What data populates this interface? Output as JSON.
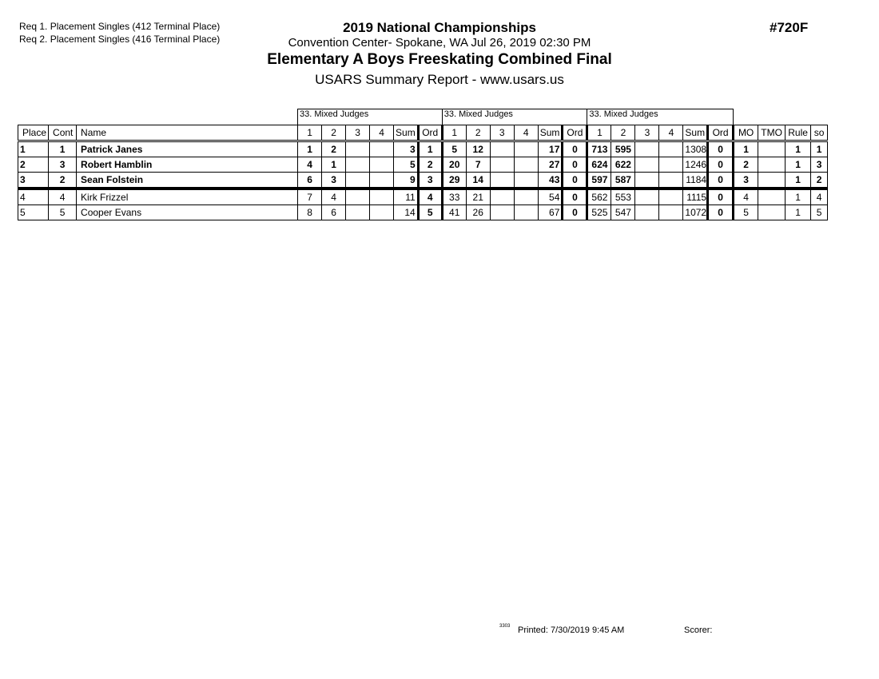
{
  "header": {
    "requirements": [
      "Req  1.  Placement Singles (412 Terminal Place)",
      "Req  2.  Placement Singles (416 Terminal Place)"
    ],
    "event_title": "2019 National Championships",
    "venue_date": "Convention Center- Spokane, WA  Jul 26, 2019  02:30 PM",
    "event_number": "#720F",
    "competition": "Elementary A Boys Freeskating Combined Final",
    "report": "USARS Summary Report - www.usars.us"
  },
  "table": {
    "groups": [
      "33.  Mixed Judges",
      "33.  Mixed Judges",
      "33.  Mixed Judges"
    ],
    "columns": [
      "Place",
      "Cont",
      "Name",
      "1",
      "2",
      "3",
      "4",
      "Sum",
      "Ord",
      "1",
      "2",
      "3",
      "4",
      "Sum",
      "Ord",
      "1",
      "2",
      "3",
      "4",
      "Sum",
      "Ord",
      "MO",
      "TMO",
      "Rule",
      "so"
    ],
    "rows": [
      {
        "bold": true,
        "cells": [
          "1",
          "1",
          "Patrick Janes",
          "1",
          "2",
          "",
          "",
          "3",
          "1",
          "5",
          "12",
          "",
          "",
          "17",
          "0",
          "713",
          "595",
          "",
          "",
          "1308",
          "0",
          "1",
          "",
          "1",
          "1"
        ]
      },
      {
        "bold": true,
        "cells": [
          "2",
          "3",
          "Robert Hamblin",
          "4",
          "1",
          "",
          "",
          "5",
          "2",
          "20",
          "7",
          "",
          "",
          "27",
          "0",
          "624",
          "622",
          "",
          "",
          "1246",
          "0",
          "2",
          "",
          "1",
          "3"
        ]
      },
      {
        "bold": true,
        "cells": [
          "3",
          "2",
          "Sean Folstein",
          "6",
          "3",
          "",
          "",
          "9",
          "3",
          "29",
          "14",
          "",
          "",
          "43",
          "0",
          "597",
          "587",
          "",
          "",
          "1184",
          "0",
          "3",
          "",
          "1",
          "2"
        ]
      },
      {
        "bold": false,
        "cells": [
          "4",
          "4",
          "Kirk Frizzel",
          "7",
          "4",
          "",
          "",
          "11",
          "4",
          "33",
          "21",
          "",
          "",
          "54",
          "0",
          "562",
          "553",
          "",
          "",
          "1115",
          "0",
          "4",
          "",
          "1",
          "4"
        ]
      },
      {
        "bold": false,
        "cells": [
          "5",
          "5",
          "Cooper Evans",
          "8",
          "6",
          "",
          "",
          "14",
          "5",
          "41",
          "26",
          "",
          "",
          "67",
          "0",
          "525",
          "547",
          "",
          "",
          "1072",
          "0",
          "5",
          "",
          "1",
          "5"
        ]
      }
    ]
  },
  "footer": {
    "code": "3303",
    "printed": "Printed:  7/30/2019  9:45 AM",
    "scorer": "Scorer:"
  }
}
